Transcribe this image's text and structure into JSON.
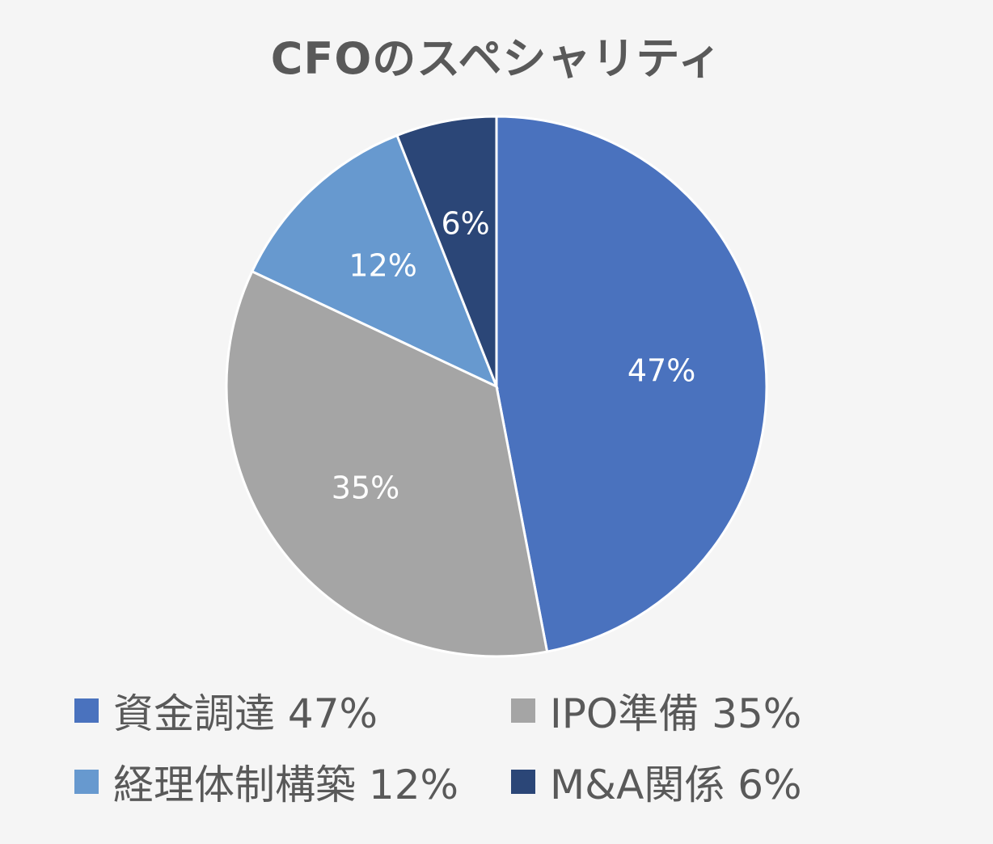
{
  "chart_data": {
    "type": "pie",
    "title": "CFOのスペシャリティ",
    "slices": [
      {
        "label": "資金調達",
        "value": 47,
        "value_label": "47%",
        "legend_text": "資金調達 47%",
        "color": "#4a72be"
      },
      {
        "label": "IPO準備",
        "value": 35,
        "value_label": "35%",
        "legend_text": "IPO準備 35%",
        "color": "#a5a5a5"
      },
      {
        "label": "経理体制構築",
        "value": 12,
        "value_label": "12%",
        "legend_text": "経理体制構築 12%",
        "color": "#6799cf"
      },
      {
        "label": "M&A関係",
        "value": 6,
        "value_label": "6%",
        "legend_text": "M&A関係 6%",
        "color": "#2b4677"
      }
    ],
    "start_angle_deg": 0,
    "direction": "clockwise",
    "legend_position": "bottom"
  },
  "colors": {
    "background": "#f5f5f5",
    "text": "#595959",
    "slice_border": "#ffffff"
  }
}
